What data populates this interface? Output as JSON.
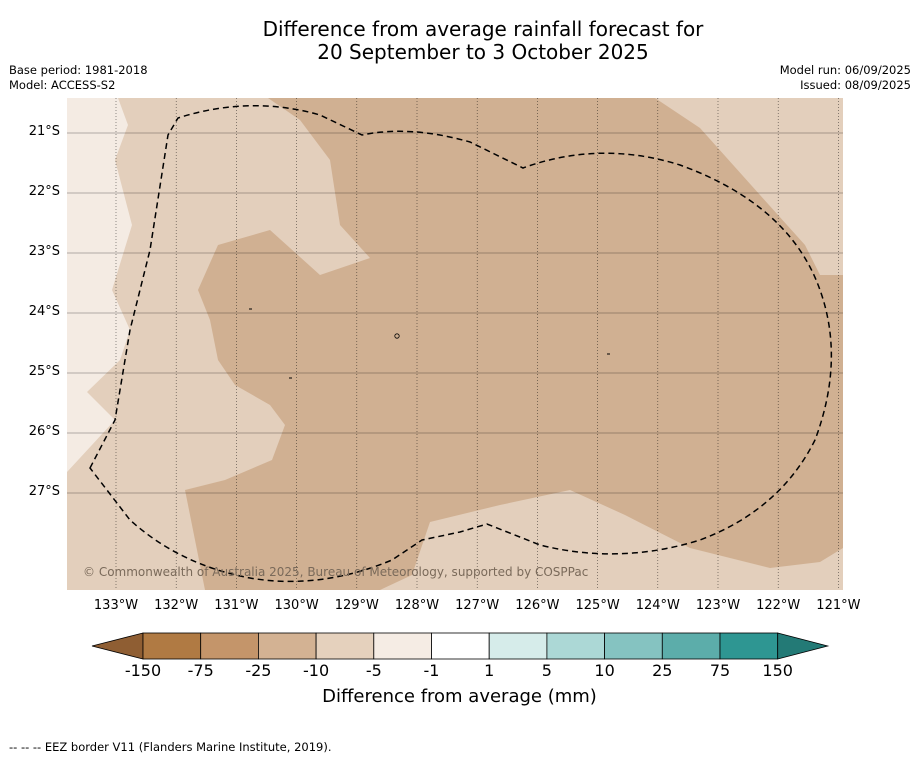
{
  "title": {
    "line1": "Difference from average rainfall forecast for",
    "line2": "20 September to 3 October 2025"
  },
  "meta": {
    "base_period": "Base period: 1981-2018",
    "model": "Model: ACCESS-S2",
    "model_run": "Model run: 06/09/2025",
    "issued": "Issued: 08/09/2025"
  },
  "map": {
    "latitude_labels": [
      "21°S",
      "22°S",
      "23°S",
      "24°S",
      "25°S",
      "26°S",
      "27°S"
    ],
    "longitude_labels": [
      "133°W",
      "132°W",
      "131°W",
      "130°W",
      "129°W",
      "128°W",
      "127°W",
      "126°W",
      "125°W",
      "124°W",
      "123°W",
      "122°W",
      "121°W"
    ],
    "copyright": "© Commonwealth of Australia 2025, Bureau of Meteorology, supported by COSPPac",
    "colors": {
      "-10 to -5": "#e3cfbc",
      "-25 to -10": "#d0b092",
      "-5 to -1": "#f4ebe3"
    }
  },
  "colorbar": {
    "title": "Difference from average (mm)",
    "ticks": [
      "-150",
      "-75",
      "-25",
      "-10",
      "-5",
      "-1",
      "1",
      "5",
      "10",
      "25",
      "75",
      "150"
    ],
    "colors": [
      "#8f5e33",
      "#b07a43",
      "#c4956a",
      "#d3b293",
      "#e5d1bd",
      "#f5ece4",
      "#ffffff",
      "#d6ecea",
      "#acd8d6",
      "#85c3c1",
      "#5cadaa",
      "#2e9692",
      "#237a76"
    ]
  },
  "footnote": "--  --  -- EEZ border V11 (Flanders Marine Institute, 2019)."
}
